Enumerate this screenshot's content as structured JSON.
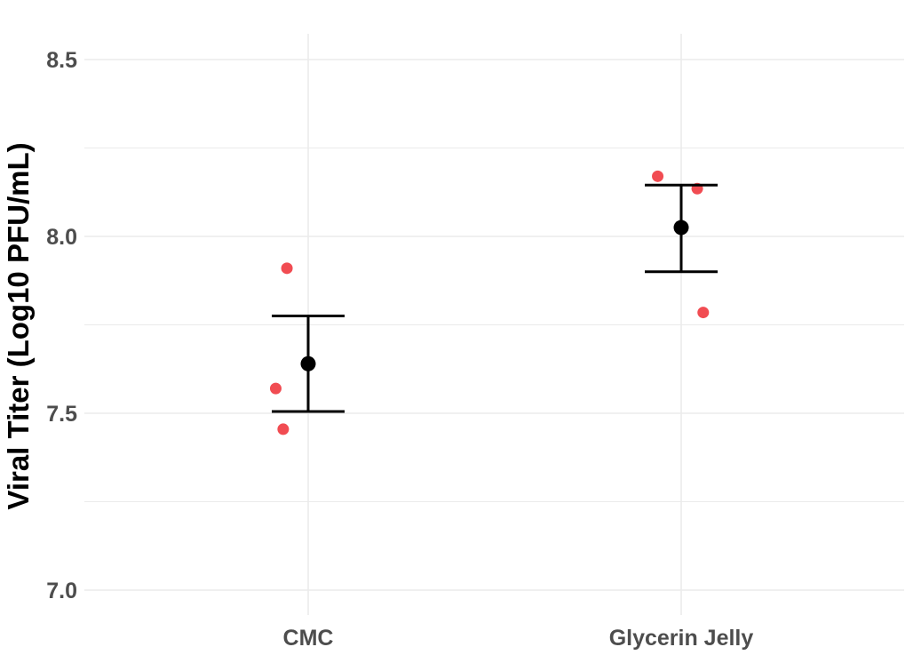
{
  "chart_data": {
    "type": "scatter",
    "title": "",
    "xlabel": "",
    "ylabel": "Viral Titer (Log10 PFU/mL)",
    "categories": [
      "CMC",
      "Glycerin Jelly"
    ],
    "ylim": [
      6.99,
      8.59
    ],
    "y_ticks": [
      "7.0",
      "7.5",
      "8.0",
      "8.5"
    ],
    "y_minor_ticks": [
      7.25,
      7.75,
      8.25
    ],
    "grid": true,
    "legend": "none",
    "points": [
      {
        "category": "CMC",
        "jitter": -0.057,
        "y": 7.91
      },
      {
        "category": "CMC",
        "jitter": -0.087,
        "y": 7.57
      },
      {
        "category": "CMC",
        "jitter": -0.067,
        "y": 7.455
      },
      {
        "category": "Glycerin Jelly",
        "jitter": -0.063,
        "y": 8.17
      },
      {
        "category": "Glycerin Jelly",
        "jitter": 0.043,
        "y": 8.135
      },
      {
        "category": "Glycerin Jelly",
        "jitter": 0.059,
        "y": 7.785
      }
    ],
    "summary": [
      {
        "category": "CMC",
        "mean": 7.64,
        "lower": 7.505,
        "upper": 7.775
      },
      {
        "category": "Glycerin Jelly",
        "mean": 8.025,
        "lower": 7.9,
        "upper": 8.145
      }
    ],
    "colors": {
      "points": "#f0393f",
      "summary": "#000000",
      "grid": "#ebebeb"
    }
  }
}
